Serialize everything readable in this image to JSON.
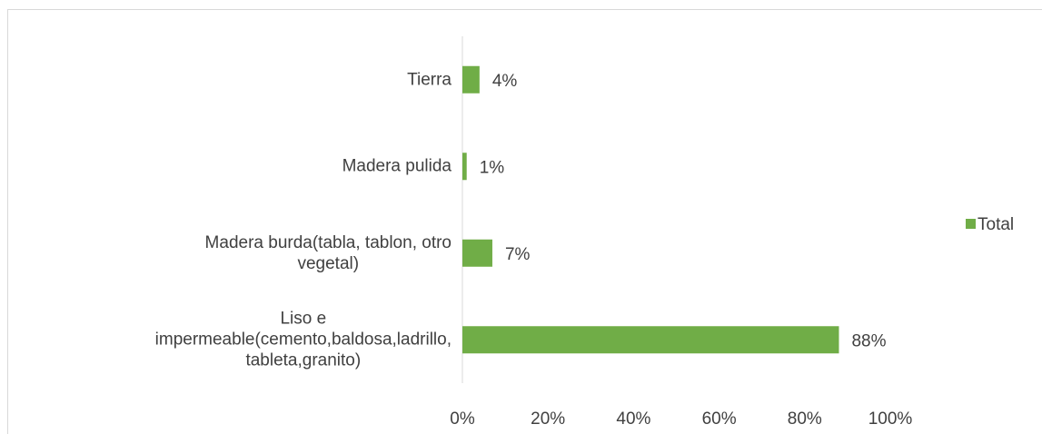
{
  "chart_data": {
    "type": "bar",
    "orientation": "horizontal",
    "categories": [
      "Tierra",
      "Madera pulida",
      "Madera burda(tabla, tablon, otro\nvegetal)",
      "Liso e\nimpermeable(cemento,baldosa,ladrillo,\ntableta,granito)"
    ],
    "series": [
      {
        "name": "Total",
        "color": "#70ad47",
        "values": [
          4,
          1,
          7,
          88
        ],
        "value_labels": [
          "4%",
          "1%",
          "7%",
          "88%"
        ]
      }
    ],
    "xlim": [
      0,
      100
    ],
    "xticks": [
      {
        "value": 0,
        "label": "0%"
      },
      {
        "value": 20,
        "label": "20%"
      },
      {
        "value": 40,
        "label": "40%"
      },
      {
        "value": 60,
        "label": "60%"
      },
      {
        "value": 80,
        "label": "80%"
      },
      {
        "value": 100,
        "label": "100%"
      }
    ],
    "legend": "right"
  }
}
